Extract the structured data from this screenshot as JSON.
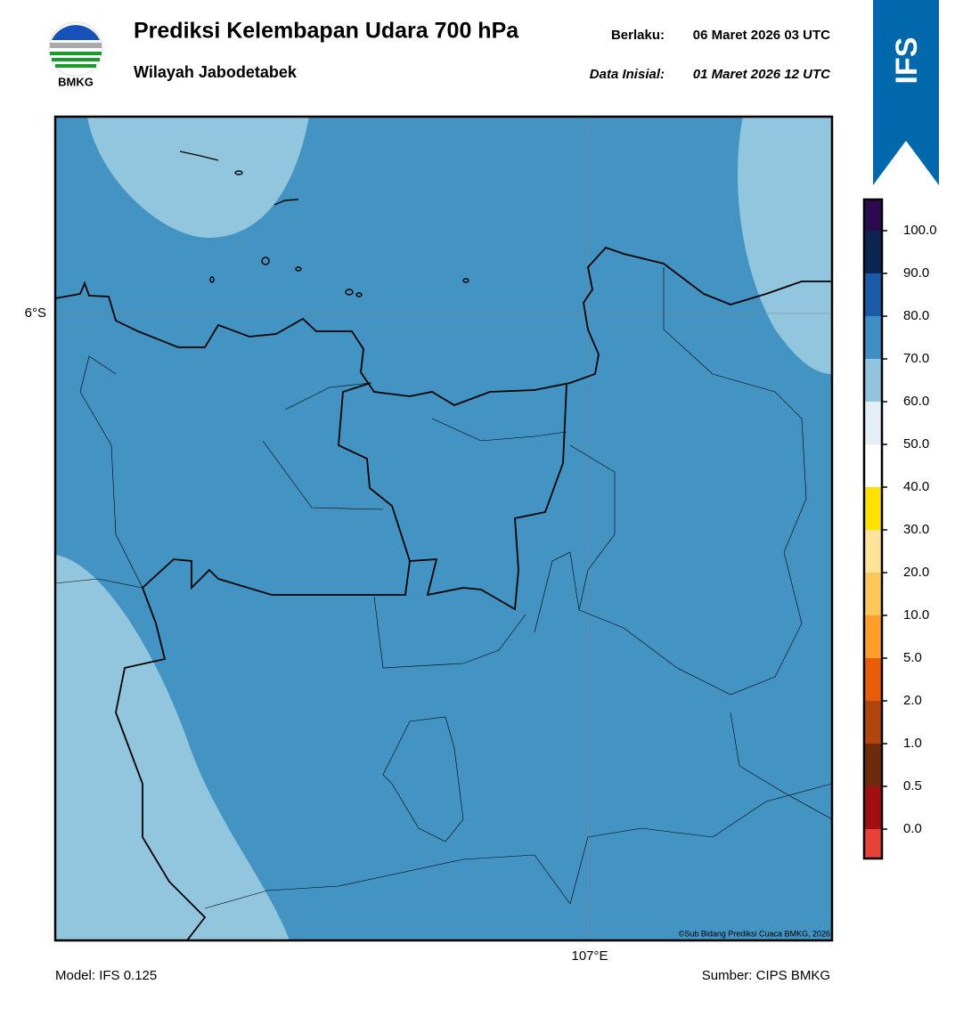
{
  "header": {
    "logo_text": "BMKG",
    "title": "Prediksi Kelembapan Udara 700 hPa",
    "subtitle": "Wilayah Jabodetabek",
    "valid_label": "Berlaku:",
    "valid_time": "06 Maret 2026 03 UTC",
    "init_label": "Data Inisial:",
    "init_time": "01 Maret 2026 12 UTC"
  },
  "banner": "IFS",
  "map": {
    "lat_label": "6°S",
    "lon_label": "107°E",
    "copyright": "©Sub Bidang Prediksi Cuaca BMKG, 2026",
    "fill_color": "#4393c3",
    "light_color": "#92c5de"
  },
  "colorbar": {
    "labels": [
      "100.0",
      "90.0",
      "80.0",
      "70.0",
      "60.0",
      "50.0",
      "40.0",
      "30.0",
      "20.0",
      "10.0",
      "5.0",
      "2.0",
      "1.0",
      "0.5",
      "0.0"
    ],
    "colors": [
      "#2d0a4e",
      "#0b2450",
      "#1a5aa8",
      "#3f8fc4",
      "#92c4de",
      "#e4eef6",
      "#ffffff",
      "#ffe100",
      "#ffe39a",
      "#ffc65a",
      "#ff9e2a",
      "#e85d0a",
      "#b04510",
      "#6e2a0d",
      "#a01010",
      "#e8413a"
    ]
  },
  "footer": {
    "model": "Model: IFS 0.125",
    "source": "Sumber: CIPS BMKG"
  }
}
